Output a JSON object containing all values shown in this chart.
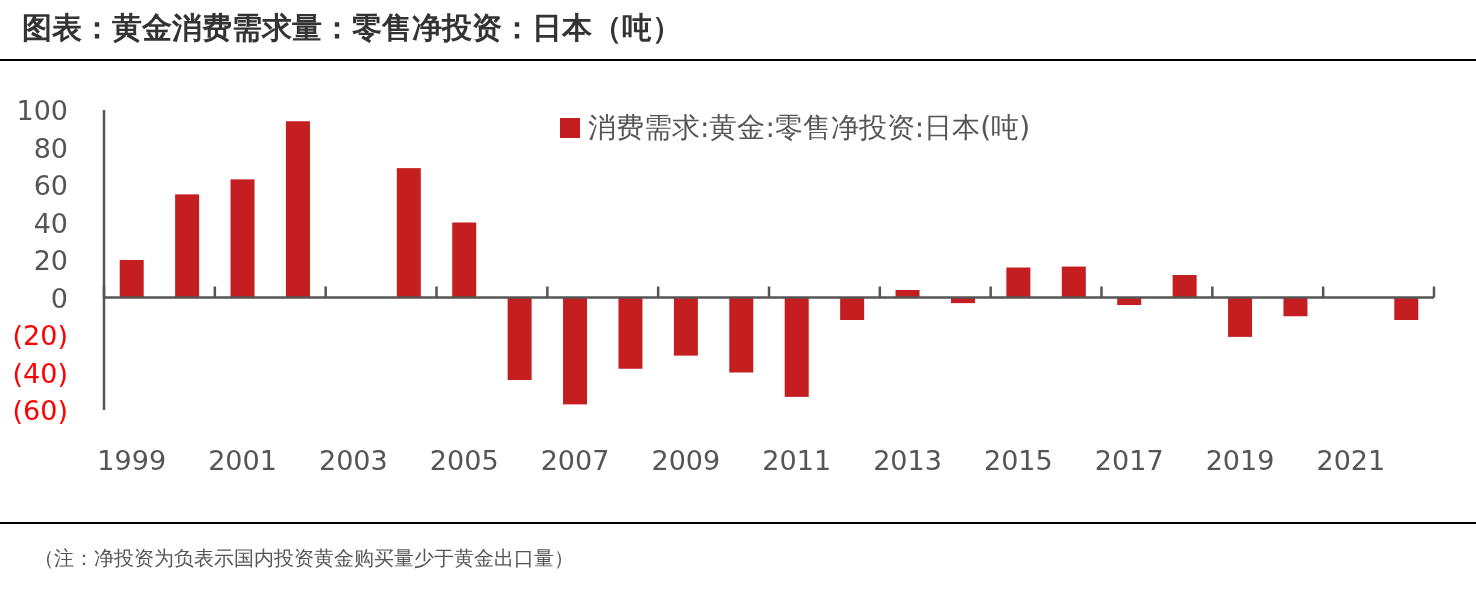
{
  "chart_data": {
    "type": "bar",
    "title": "图表：黄金消费需求量：零售净投资：日本（吨）",
    "categories": [
      "1999",
      null,
      "2001",
      null,
      "2003",
      null,
      "2005",
      null,
      "2007",
      null,
      "2009",
      null,
      "2011",
      null,
      "2013",
      null,
      "2015",
      null,
      "2017",
      null,
      "2019",
      null,
      "2021",
      null
    ],
    "series": [
      {
        "name": "消费需求:黄金:零售净投资:日本(吨)",
        "color": "#c41e20",
        "values": [
          20,
          55,
          63,
          94,
          null,
          69,
          40,
          -44,
          -57,
          -38,
          -31,
          -40,
          -53,
          -12,
          4,
          -3,
          16,
          16.5,
          -4,
          12,
          -21,
          -10,
          null,
          -12
        ]
      }
    ],
    "ylim": [
      -60,
      100
    ],
    "yticks": [
      {
        "value": -60,
        "label": "(60)"
      },
      {
        "value": -40,
        "label": "(40)"
      },
      {
        "value": -20,
        "label": "(20)"
      },
      0,
      20,
      40,
      60,
      80,
      100
    ],
    "legend": "top",
    "annotations": [
      "（注：净投资为负表示国内投资黄金购买量少于黄金出口量）"
    ]
  }
}
